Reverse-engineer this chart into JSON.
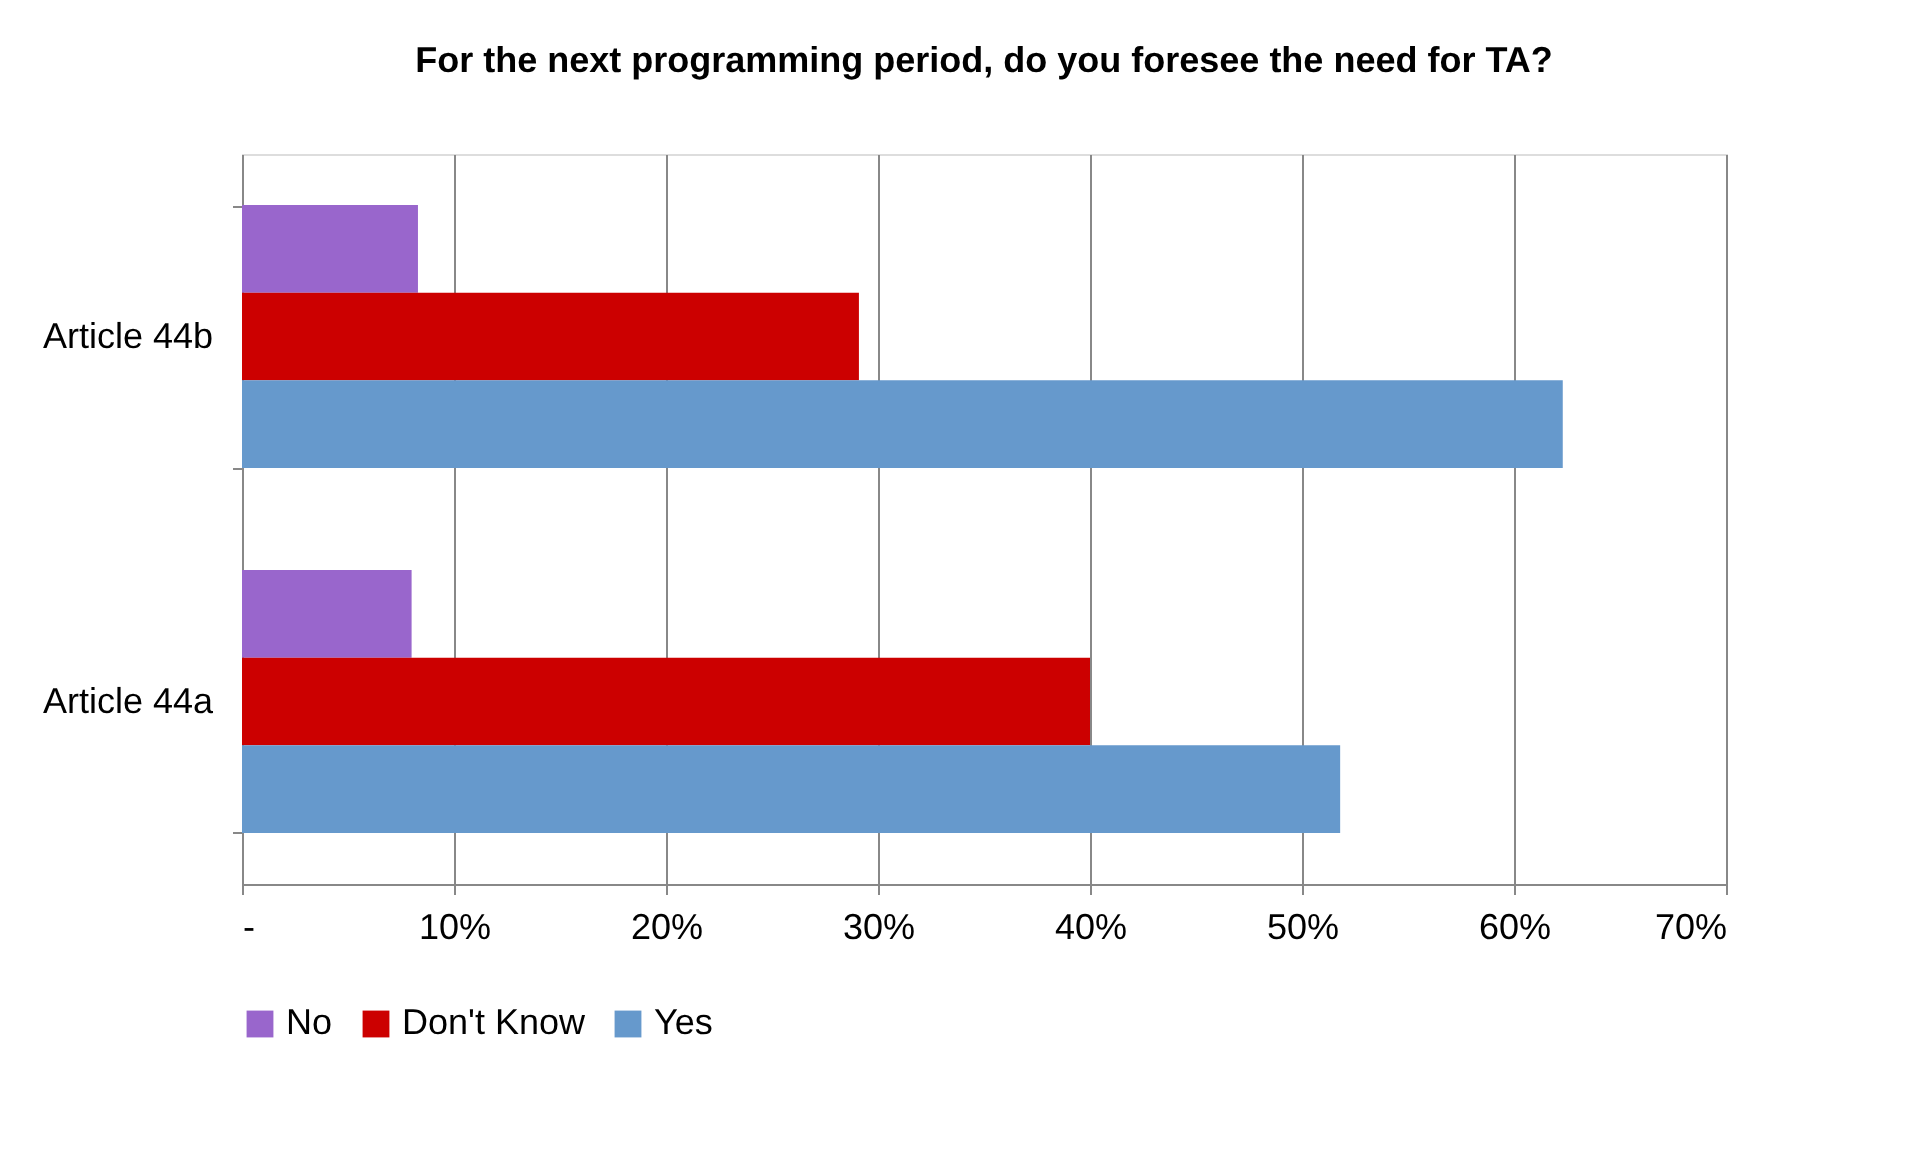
{
  "chart_data": {
    "type": "bar",
    "orientation": "horizontal",
    "title": "For the next programming period, do you foresee the need for TA?",
    "categories": [
      "Article 44b",
      "Article 44a"
    ],
    "series": [
      {
        "name": "No",
        "color": "#9966cc",
        "values": [
          8.3,
          8.0
        ]
      },
      {
        "name": "Don't Know",
        "color": "#cc0000",
        "values": [
          29.1,
          40.0
        ]
      },
      {
        "name": "Yes",
        "color": "#6699cc",
        "values": [
          62.3,
          51.8
        ]
      }
    ],
    "xlim": [
      0,
      70
    ],
    "xticks": [
      {
        "value": 0,
        "label": "-"
      },
      {
        "value": 10,
        "label": "10%"
      },
      {
        "value": 20,
        "label": "20%"
      },
      {
        "value": 30,
        "label": "30%"
      },
      {
        "value": 40,
        "label": "40%"
      },
      {
        "value": 50,
        "label": "50%"
      },
      {
        "value": 60,
        "label": "60%"
      },
      {
        "value": 70,
        "label": "70%"
      }
    ],
    "grid": "x",
    "legend": "bottom"
  }
}
